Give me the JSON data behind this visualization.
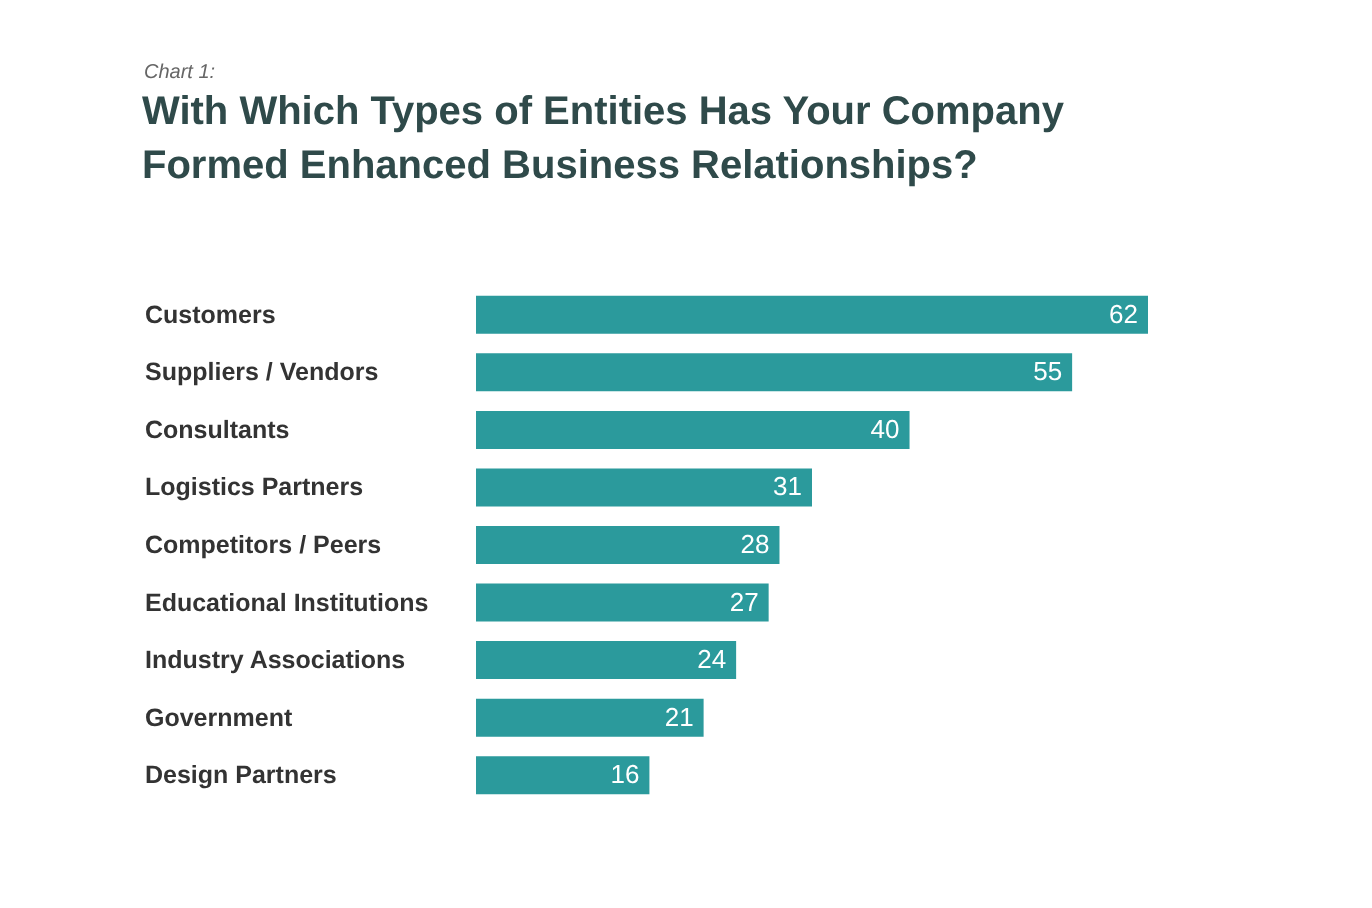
{
  "chart_data": {
    "type": "bar",
    "orientation": "horizontal",
    "subtitle": "Chart 1:",
    "title": "With Which Types of Entities Has Your Company Formed Enhanced Business Relationships?",
    "categories": [
      "Customers",
      "Suppliers / Vendors",
      "Consultants",
      "Logistics Partners",
      "Competitors / Peers",
      "Educational Institutions",
      "Industry Associations",
      "Government",
      "Design Partners"
    ],
    "values": [
      62,
      55,
      40,
      31,
      28,
      27,
      24,
      21,
      16
    ],
    "color": "#2b9a9c",
    "data_labels": true
  }
}
